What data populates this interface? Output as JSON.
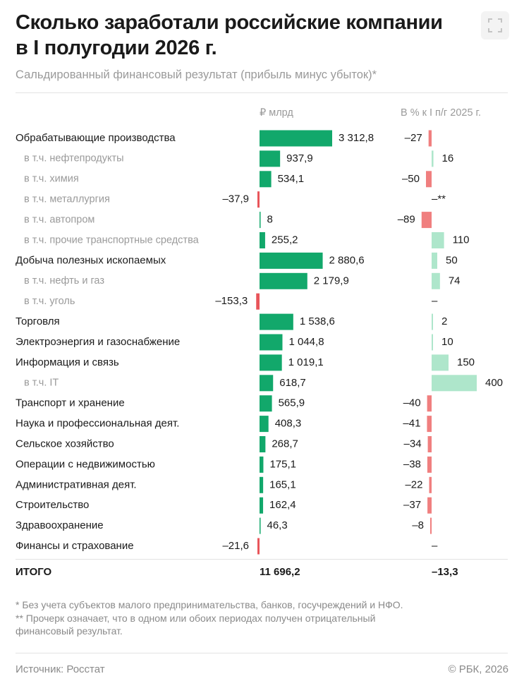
{
  "header": {
    "title_line1": "Сколько заработали российские компании",
    "title_line2": "в I полугодии 2026 г.",
    "subtitle": "Сальдированный финансовый результат (прибыль минус убыток)*",
    "expand_icon": "fullscreen-expand-icon"
  },
  "columns": {
    "value_header": "₽ млрд",
    "change_header": "В % к I п/г 2025 г."
  },
  "colors": {
    "positive_value": "#12a86b",
    "negative_value": "#e8555a",
    "negative_change": "#f07f7f",
    "positive_change": "#aee6cb",
    "label_primary": "#1a1a1a",
    "label_sub": "#9a9a9a"
  },
  "chart_data": {
    "type": "bar",
    "series": [
      {
        "name": "₽ млрд",
        "values": [
          3312.8,
          937.9,
          534.1,
          -37.9,
          8,
          255.2,
          2880.6,
          2179.9,
          -153.3,
          1538.6,
          1044.8,
          1019.1,
          618.7,
          565.9,
          408.3,
          268.7,
          175.1,
          165.1,
          162.4,
          46.3,
          -21.6
        ]
      },
      {
        "name": "В % к I п/г 2025 г.",
        "values": [
          -27,
          16,
          -50,
          null,
          -89,
          110,
          50,
          74,
          null,
          2,
          10,
          150,
          400,
          -40,
          -41,
          -34,
          -38,
          -22,
          -37,
          -8,
          null
        ]
      }
    ],
    "rows": [
      {
        "label": "Обрабатывающие производства",
        "sub": false,
        "value": 3312.8,
        "value_text": "3 312,8",
        "change": -27,
        "change_text": "–27"
      },
      {
        "label": "в т.ч. нефтепродукты",
        "sub": true,
        "value": 937.9,
        "value_text": "937,9",
        "change": 16,
        "change_text": "16"
      },
      {
        "label": "в т.ч. химия",
        "sub": true,
        "value": 534.1,
        "value_text": "534,1",
        "change": -50,
        "change_text": "–50"
      },
      {
        "label": "в т.ч. металлургия",
        "sub": true,
        "value": -37.9,
        "value_text": "–37,9",
        "change": null,
        "change_text": "–**"
      },
      {
        "label": "в т.ч. автопром",
        "sub": true,
        "value": 8,
        "value_text": "8",
        "change": -89,
        "change_text": "–89"
      },
      {
        "label": "в т.ч. прочие транспортные средства",
        "sub": true,
        "value": 255.2,
        "value_text": "255,2",
        "change": 110,
        "change_text": "110"
      },
      {
        "label": "Добыча полезных ископаемых",
        "sub": false,
        "value": 2880.6,
        "value_text": "2 880,6",
        "change": 50,
        "change_text": "50"
      },
      {
        "label": "в т.ч. нефть и газ",
        "sub": true,
        "value": 2179.9,
        "value_text": "2 179,9",
        "change": 74,
        "change_text": "74"
      },
      {
        "label": "в т.ч. уголь",
        "sub": true,
        "value": -153.3,
        "value_text": "–153,3",
        "change": null,
        "change_text": "–"
      },
      {
        "label": "Торговля",
        "sub": false,
        "value": 1538.6,
        "value_text": "1 538,6",
        "change": 2,
        "change_text": "2"
      },
      {
        "label": "Электроэнергия и газоснабжение",
        "sub": false,
        "value": 1044.8,
        "value_text": "1 044,8",
        "change": 10,
        "change_text": "10"
      },
      {
        "label": "Информация и связь",
        "sub": false,
        "value": 1019.1,
        "value_text": "1 019,1",
        "change": 150,
        "change_text": "150"
      },
      {
        "label": "в т.ч. IT",
        "sub": true,
        "value": 618.7,
        "value_text": "618,7",
        "change": 400,
        "change_text": "400"
      },
      {
        "label": "Транспорт и хранение",
        "sub": false,
        "value": 565.9,
        "value_text": "565,9",
        "change": -40,
        "change_text": "–40"
      },
      {
        "label": "Наука и профессиональная деят.",
        "sub": false,
        "value": 408.3,
        "value_text": "408,3",
        "change": -41,
        "change_text": "–41"
      },
      {
        "label": "Сельское хозяйство",
        "sub": false,
        "value": 268.7,
        "value_text": "268,7",
        "change": -34,
        "change_text": "–34"
      },
      {
        "label": "Операции с недвижимостью",
        "sub": false,
        "value": 175.1,
        "value_text": "175,1",
        "change": -38,
        "change_text": "–38"
      },
      {
        "label": "Административная деят.",
        "sub": false,
        "value": 165.1,
        "value_text": "165,1",
        "change": -22,
        "change_text": "–22"
      },
      {
        "label": "Строительство",
        "sub": false,
        "value": 162.4,
        "value_text": "162,4",
        "change": -37,
        "change_text": "–37"
      },
      {
        "label": "Здравоохранение",
        "sub": false,
        "value": 46.3,
        "value_text": "46,3",
        "change": -8,
        "change_text": "–8"
      },
      {
        "label": "Финансы и страхование",
        "sub": false,
        "value": -21.6,
        "value_text": "–21,6",
        "change": null,
        "change_text": "–"
      }
    ]
  },
  "total": {
    "label": "ИТОГО",
    "value_text": "11 696,2",
    "change_text": "–13,3"
  },
  "notes": {
    "note1": "* Без учета субъектов малого предпринимательства, банков, госучреждений и НФО.",
    "note2_line1": "** Прочерк означает, что в одном или обоих периодах получен отрицательный",
    "note2_line2": "финансовый результат."
  },
  "footer": {
    "source": "Источник: Росстат",
    "copyright": "© РБК, 2026"
  }
}
